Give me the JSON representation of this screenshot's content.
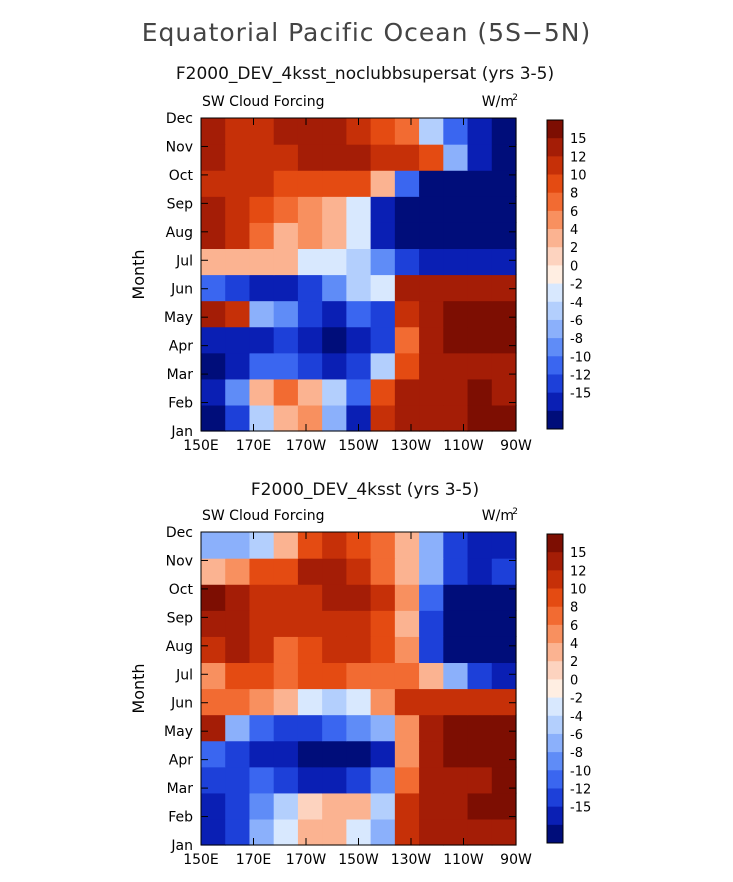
{
  "page": {
    "title": "Equatorial Pacific Ocean (5S−5N)"
  },
  "colors": {
    "scale": [
      "#000d7a",
      "#0a1fb4",
      "#1d40d9",
      "#3a66f0",
      "#5f8cf7",
      "#8bb0fb",
      "#b3cffd",
      "#d8e8fe",
      "#ffeee2",
      "#fdd3bf",
      "#fbb391",
      "#f8905f",
      "#f26b32",
      "#e44b12",
      "#c63008",
      "#a41d06",
      "#7d0e02"
    ]
  },
  "chart_data": [
    {
      "type": "heatmap",
      "title": "F2000_DEV_4ksst_noclubbsupersat (yrs 3-5)",
      "subtitle_left": "SW Cloud Forcing",
      "units": "W/m",
      "units_sup": "2",
      "ylabel": "Month",
      "xlabel": "",
      "x_ticks": [
        "150E",
        "170E",
        "170W",
        "150W",
        "130W",
        "110W",
        "90W"
      ],
      "y_ticks": [
        "Jan",
        "Feb",
        "Mar",
        "Apr",
        "May",
        "Jun",
        "Jul",
        "Aug",
        "Sep",
        "Oct",
        "Nov",
        "Dec"
      ],
      "colorbar_labels": [
        "15",
        "12",
        "10",
        "8",
        "6",
        "4",
        "2",
        "0",
        "-2",
        "-4",
        "-6",
        "-8",
        "-10",
        "-12",
        "-15"
      ],
      "values": [
        [
          -16,
          -12,
          -4,
          2,
          4,
          -6,
          -14,
          10,
          14,
          12,
          12,
          16,
          16
        ],
        [
          -14,
          -8,
          2,
          6,
          3,
          -4,
          -10,
          8,
          13,
          14,
          14,
          16,
          14
        ],
        [
          -16,
          -14,
          -10,
          -10,
          -12,
          -14,
          -12,
          -4,
          8,
          13,
          14,
          14,
          14
        ],
        [
          -14,
          -15,
          -14,
          -12,
          -14,
          -16,
          -14,
          -12,
          6,
          12,
          15,
          16,
          16
        ],
        [
          14,
          10,
          -6,
          -8,
          -12,
          -14,
          -10,
          -12,
          10,
          14,
          16,
          16,
          16
        ],
        [
          -10,
          -12,
          -14,
          -14,
          -12,
          -8,
          -4,
          -2,
          12,
          14,
          14,
          12,
          12
        ],
        [
          2,
          2,
          2,
          2,
          -1,
          -2,
          -3,
          -8,
          -12,
          -14,
          -14,
          -14,
          -14
        ],
        [
          12,
          10,
          6,
          3,
          4,
          2,
          -2,
          -14,
          -16,
          -16,
          -16,
          -16,
          -16
        ],
        [
          12,
          11,
          8,
          6,
          5,
          3,
          -2,
          -14,
          -16,
          -16,
          -16,
          -16,
          -16
        ],
        [
          10,
          10,
          10,
          9,
          9,
          8,
          8,
          2,
          -10,
          -16,
          -16,
          -16,
          -16
        ],
        [
          14,
          10,
          10,
          10,
          12,
          14,
          12,
          10,
          10,
          8,
          -6,
          -14,
          -16
        ],
        [
          12,
          10,
          10,
          12,
          14,
          12,
          10,
          8,
          6,
          -4,
          -10,
          -14,
          -16
        ]
      ]
    },
    {
      "type": "heatmap",
      "title": "F2000_DEV_4ksst (yrs 3-5)",
      "subtitle_left": "SW Cloud Forcing",
      "units": "W/m",
      "units_sup": "2",
      "ylabel": "Month",
      "xlabel": "",
      "x_ticks": [
        "150E",
        "170E",
        "170W",
        "150W",
        "130W",
        "110W",
        "90W"
      ],
      "y_ticks": [
        "Jan",
        "Feb",
        "Mar",
        "Apr",
        "May",
        "Jun",
        "Jul",
        "Aug",
        "Sep",
        "Oct",
        "Nov",
        "Dec"
      ],
      "colorbar_labels": [
        "15",
        "12",
        "10",
        "8",
        "6",
        "4",
        "2",
        "0",
        "-2",
        "-4",
        "-6",
        "-8",
        "-10",
        "-12",
        "-15"
      ],
      "values": [
        [
          -15,
          -12,
          -6,
          -2,
          2,
          2,
          -2,
          -6,
          10,
          12,
          14,
          14,
          14
        ],
        [
          -14,
          -12,
          -8,
          -4,
          0,
          2,
          2,
          -4,
          10,
          12,
          14,
          16,
          16
        ],
        [
          -12,
          -12,
          -10,
          -12,
          -14,
          -14,
          -12,
          -8,
          6,
          12,
          14,
          14,
          16
        ],
        [
          -10,
          -12,
          -14,
          -14,
          -16,
          -16,
          -16,
          -14,
          4,
          12,
          16,
          16,
          16
        ],
        [
          12,
          -6,
          -10,
          -12,
          -12,
          -10,
          -8,
          -6,
          4,
          12,
          16,
          16,
          16
        ],
        [
          6,
          6,
          4,
          2,
          -2,
          -4,
          -2,
          4,
          10,
          10,
          10,
          10,
          10
        ],
        [
          4,
          8,
          8,
          6,
          8,
          8,
          6,
          6,
          6,
          2,
          -6,
          -12,
          -14
        ],
        [
          10,
          12,
          10,
          6,
          8,
          10,
          10,
          8,
          4,
          -12,
          -16,
          -16,
          -16
        ],
        [
          14,
          12,
          10,
          10,
          10,
          10,
          10,
          8,
          2,
          -12,
          -16,
          -16,
          -16
        ],
        [
          16,
          14,
          10,
          10,
          10,
          12,
          12,
          10,
          4,
          -10,
          -16,
          -16,
          -16
        ],
        [
          2,
          4,
          8,
          8,
          12,
          12,
          10,
          6,
          2,
          -6,
          -12,
          -14,
          -12
        ],
        [
          -6,
          -6,
          -4,
          2,
          8,
          10,
          8,
          6,
          2,
          -6,
          -12,
          -14,
          -14
        ]
      ]
    }
  ]
}
